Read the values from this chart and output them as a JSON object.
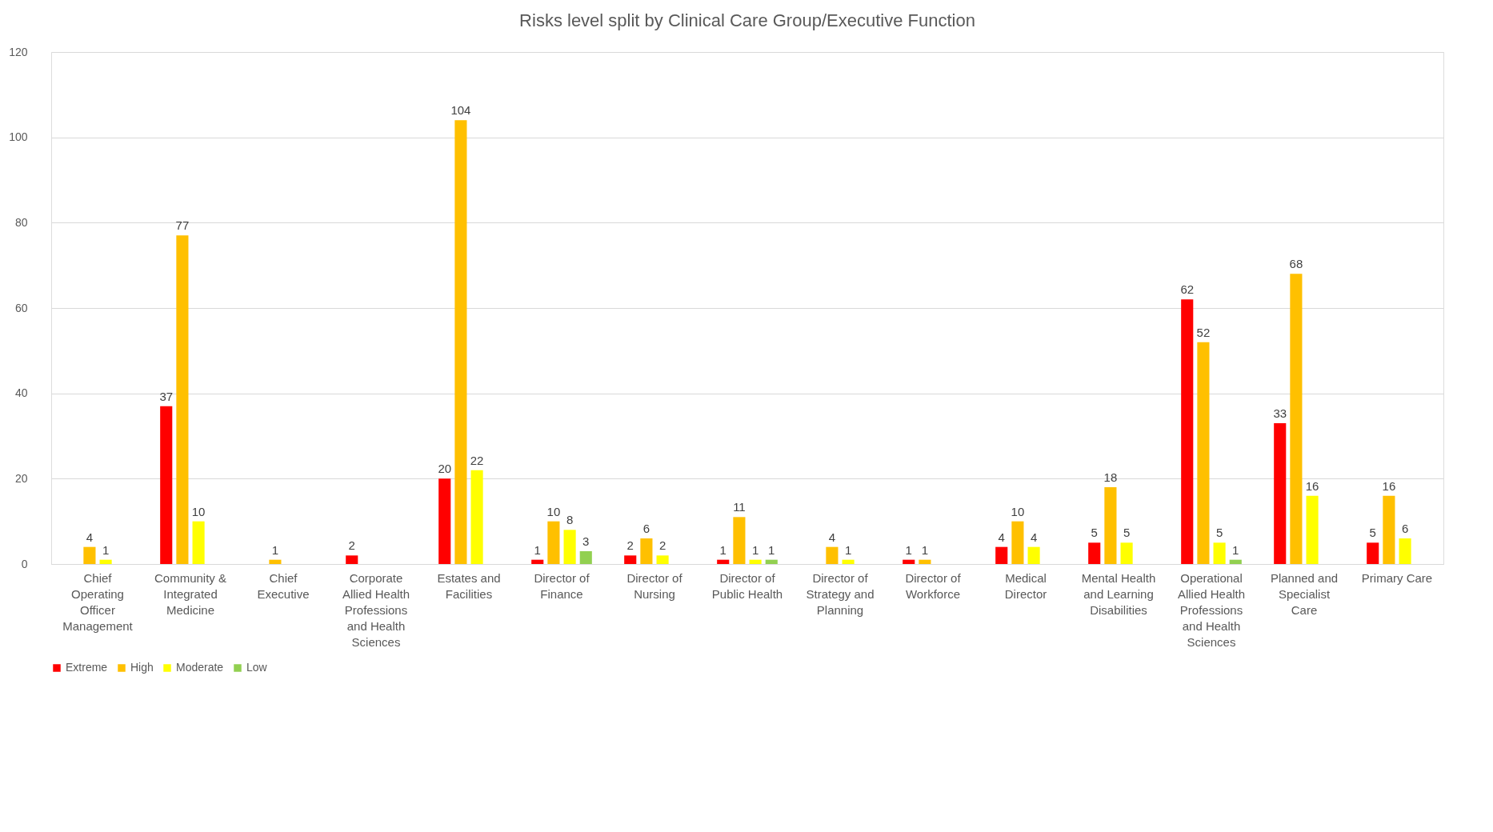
{
  "chart_data": {
    "type": "bar",
    "title": "Risks level split by Clinical Care Group/Executive Function",
    "categories": [
      "Chief Operating Officer Management",
      "Community & Integrated Medicine",
      "Chief Executive",
      "Corporate Allied Health Professions and Health Sciences",
      "Estates and Facilities",
      "Director of Finance",
      "Director of Nursing",
      "Director of Public Health",
      "Director of Strategy and Planning",
      "Director of Workforce",
      "Medical Director",
      "Mental Health and Learning Disabilities",
      "Operational Allied Health Professions and Health Sciences",
      "Planned and Specialist Care",
      "Primary Care"
    ],
    "series": [
      {
        "name": "Extreme",
        "color": "#ff0000",
        "values": [
          null,
          37,
          null,
          2,
          20,
          1,
          2,
          1,
          null,
          1,
          4,
          5,
          62,
          33,
          5
        ]
      },
      {
        "name": "High",
        "color": "#ffc000",
        "values": [
          4,
          77,
          1,
          null,
          104,
          10,
          6,
          11,
          4,
          1,
          10,
          18,
          52,
          68,
          16
        ]
      },
      {
        "name": "Moderate",
        "color": "#ffff00",
        "values": [
          1,
          10,
          null,
          null,
          22,
          8,
          2,
          1,
          1,
          null,
          4,
          5,
          5,
          16,
          6
        ]
      },
      {
        "name": "Low",
        "color": "#92d050",
        "values": [
          null,
          null,
          null,
          null,
          null,
          3,
          null,
          1,
          null,
          null,
          null,
          null,
          1,
          null,
          null
        ]
      }
    ],
    "ylim": [
      0,
      120
    ],
    "yticks": [
      0,
      20,
      40,
      60,
      80,
      100,
      120
    ],
    "grid": "y",
    "legend": "bottom",
    "data_labels": true
  }
}
